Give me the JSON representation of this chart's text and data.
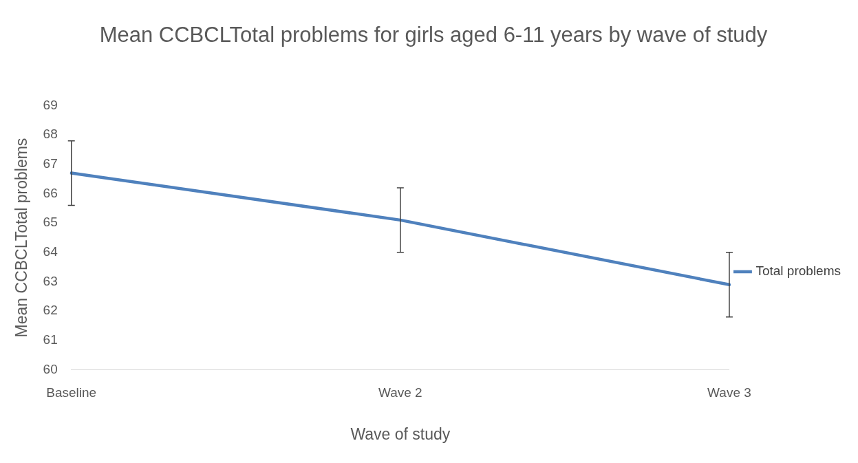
{
  "chart_data": {
    "type": "line",
    "title": "Mean CCBCLTotal problems for girls aged 6-11 years by wave of study",
    "xlabel": "Wave of study",
    "ylabel": "Mean CCBCLTotal problems",
    "categories": [
      "Baseline",
      "Wave 2",
      "Wave 3"
    ],
    "series": [
      {
        "name": "Total problems",
        "color": "#4f81bd",
        "values": [
          66.7,
          65.1,
          62.9
        ],
        "errors": [
          1.1,
          1.1,
          1.1
        ]
      }
    ],
    "ylim": [
      60,
      69
    ],
    "yticks": [
      60,
      61,
      62,
      63,
      64,
      65,
      66,
      67,
      68,
      69
    ],
    "grid": false,
    "legend": "right",
    "marker": "none",
    "line_style": "solid"
  }
}
